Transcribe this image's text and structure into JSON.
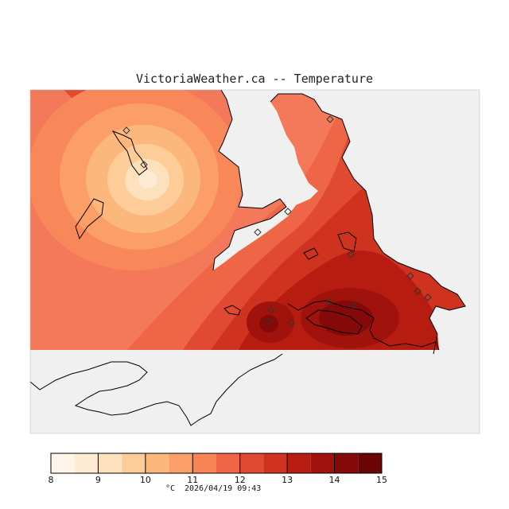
{
  "header": {
    "title": "VictoriaWeather.ca -- Temperature"
  },
  "legend": {
    "ticks": [
      "8",
      "9",
      "10",
      "11",
      "12",
      "13",
      "14",
      "15"
    ],
    "colors": [
      "#fff5e8",
      "#feebd4",
      "#fde0bc",
      "#fdcc98",
      "#fcb87c",
      "#fb9e67",
      "#f88456",
      "#ee6646",
      "#e04a33",
      "#cf3320",
      "#b71c11",
      "#a0120c",
      "#860909",
      "#6b0404"
    ],
    "unit": "°C",
    "timestamp": "2026/04/19 09:43"
  },
  "map": {
    "sea_color": "#f0f0f0",
    "stations": 14
  }
}
